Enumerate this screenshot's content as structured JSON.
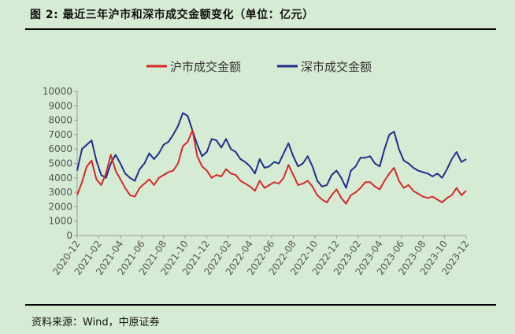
{
  "figure": {
    "title": "图 2:  最近三年沪市和深市成交金额变化（单位：亿元）",
    "source": "资料来源：Wind，中原证券"
  },
  "colors": {
    "sh": "#d42a2a",
    "sz": "#1f2f8c",
    "axis": "#9a9a9a"
  },
  "chart_data": {
    "type": "line",
    "title": "",
    "xlabel": "",
    "ylabel": "",
    "ylim": [
      0,
      10000
    ],
    "yticks": [
      0,
      1000,
      2000,
      3000,
      4000,
      5000,
      6000,
      7000,
      8000,
      9000,
      10000
    ],
    "x_ticks": [
      "2020-12",
      "2021-02",
      "2021-04",
      "2021-06",
      "2021-08",
      "2021-10",
      "2021-12",
      "2022-02",
      "2022-04",
      "2022-06",
      "2022-08",
      "2022-10",
      "2022-12",
      "2023-02",
      "2023-04",
      "2023-06",
      "2023-08",
      "2023-10",
      "2023-12"
    ],
    "legend": [
      "沪市成交金额",
      "深市成交金额"
    ],
    "legend_position": "top-center",
    "series": [
      {
        "name": "沪市成交金额",
        "values": [
          2800,
          3700,
          4800,
          5200,
          3900,
          3500,
          4300,
          5600,
          4500,
          3900,
          3300,
          2800,
          2700,
          3300,
          3600,
          3900,
          3500,
          4000,
          4200,
          4400,
          4500,
          5000,
          6200,
          6500,
          7300,
          5500,
          4800,
          4500,
          4000,
          4200,
          4100,
          4600,
          4300,
          4200,
          3800,
          3600,
          3400,
          3100,
          3800,
          3300,
          3500,
          3700,
          3600,
          4000,
          4900,
          4200,
          3500,
          3600,
          3800,
          3400,
          2800,
          2500,
          2300,
          2800,
          3200,
          2600,
          2200,
          2800,
          3000,
          3300,
          3700,
          3700,
          3400,
          3200,
          3800,
          4300,
          4700,
          3800,
          3300,
          3500,
          3100,
          2900,
          2700,
          2600,
          2700,
          2500,
          2300,
          2600,
          2800,
          3300,
          2800,
          3100
        ]
      },
      {
        "name": "深市成交金额",
        "values": [
          4500,
          6000,
          6300,
          6600,
          5200,
          4200,
          4000,
          5000,
          5600,
          5000,
          4300,
          4000,
          3800,
          4600,
          5000,
          5700,
          5300,
          5700,
          6300,
          6500,
          7000,
          7600,
          8500,
          8300,
          7300,
          6300,
          5500,
          5800,
          6700,
          6600,
          6100,
          6700,
          6000,
          5800,
          5300,
          5100,
          4800,
          4300,
          5300,
          4700,
          4800,
          5100,
          5000,
          5700,
          6400,
          5500,
          4800,
          5000,
          5500,
          4800,
          3800,
          3400,
          3500,
          4200,
          4500,
          4000,
          3300,
          4500,
          4800,
          5400,
          5400,
          5500,
          5000,
          4800,
          6000,
          7000,
          7200,
          6000,
          5200,
          5000,
          4700,
          4500,
          4400,
          4300,
          4100,
          4300,
          4000,
          4600,
          5300,
          5800,
          5100,
          5300
        ]
      }
    ]
  }
}
